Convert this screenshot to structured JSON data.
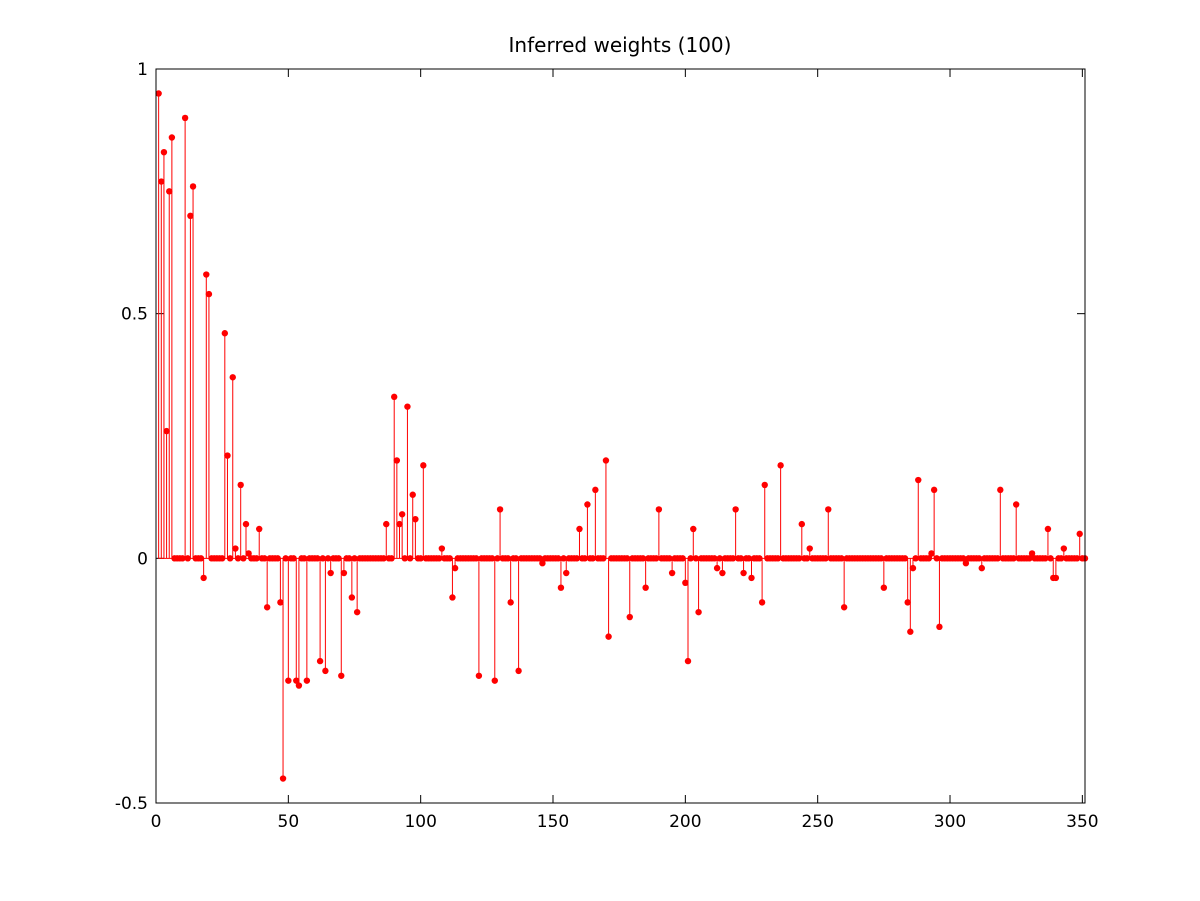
{
  "chart_data": {
    "type": "stem",
    "title": "Inferred weights (100)",
    "xlabel": "",
    "ylabel": "",
    "xlim": [
      0,
      351
    ],
    "ylim": [
      -0.5,
      1
    ],
    "xticks": [
      0,
      50,
      100,
      150,
      200,
      250,
      300,
      350
    ],
    "yticks": [
      -0.5,
      0,
      0.5,
      1
    ],
    "xtick_labels": [
      "0",
      "50",
      "100",
      "150",
      "200",
      "250",
      "300",
      "350"
    ],
    "ytick_labels": [
      "-0.5",
      "0",
      "0.5",
      "1"
    ],
    "grid": false,
    "series": [
      {
        "color": "#ff0000",
        "n": 351,
        "nonzero": [
          [
            1,
            0.95
          ],
          [
            2,
            0.77
          ],
          [
            3,
            0.83
          ],
          [
            4,
            0.26
          ],
          [
            5,
            0.75
          ],
          [
            6,
            0.86
          ],
          [
            11,
            0.9
          ],
          [
            13,
            0.7
          ],
          [
            14,
            0.76
          ],
          [
            18,
            -0.04
          ],
          [
            19,
            0.58
          ],
          [
            20,
            0.54
          ],
          [
            26,
            0.46
          ],
          [
            27,
            0.21
          ],
          [
            29,
            0.37
          ],
          [
            30,
            0.02
          ],
          [
            32,
            0.15
          ],
          [
            34,
            0.07
          ],
          [
            35,
            0.01
          ],
          [
            39,
            0.06
          ],
          [
            42,
            -0.1
          ],
          [
            47,
            -0.09
          ],
          [
            48,
            -0.45
          ],
          [
            50,
            -0.25
          ],
          [
            53,
            -0.25
          ],
          [
            54,
            -0.26
          ],
          [
            57,
            -0.25
          ],
          [
            62,
            -0.21
          ],
          [
            64,
            -0.23
          ],
          [
            66,
            -0.03
          ],
          [
            70,
            -0.24
          ],
          [
            71,
            -0.03
          ],
          [
            74,
            -0.08
          ],
          [
            76,
            -0.11
          ],
          [
            87,
            0.07
          ],
          [
            90,
            0.33
          ],
          [
            91,
            0.2
          ],
          [
            92,
            0.07
          ],
          [
            93,
            0.09
          ],
          [
            95,
            0.31
          ],
          [
            97,
            0.13
          ],
          [
            98,
            0.08
          ],
          [
            101,
            0.19
          ],
          [
            108,
            0.02
          ],
          [
            112,
            -0.08
          ],
          [
            113,
            -0.02
          ],
          [
            122,
            -0.24
          ],
          [
            128,
            -0.25
          ],
          [
            130,
            0.1
          ],
          [
            134,
            -0.09
          ],
          [
            137,
            -0.23
          ],
          [
            146,
            -0.01
          ],
          [
            153,
            -0.06
          ],
          [
            155,
            -0.03
          ],
          [
            160,
            0.06
          ],
          [
            163,
            0.11
          ],
          [
            166,
            0.14
          ],
          [
            170,
            0.2
          ],
          [
            171,
            -0.16
          ],
          [
            179,
            -0.12
          ],
          [
            185,
            -0.06
          ],
          [
            190,
            0.1
          ],
          [
            195,
            -0.03
          ],
          [
            200,
            -0.05
          ],
          [
            201,
            -0.21
          ],
          [
            203,
            0.06
          ],
          [
            205,
            -0.11
          ],
          [
            212,
            -0.02
          ],
          [
            214,
            -0.03
          ],
          [
            219,
            0.1
          ],
          [
            222,
            -0.03
          ],
          [
            225,
            -0.04
          ],
          [
            229,
            -0.09
          ],
          [
            230,
            0.15
          ],
          [
            236,
            0.19
          ],
          [
            244,
            0.07
          ],
          [
            247,
            0.02
          ],
          [
            254,
            0.1
          ],
          [
            260,
            -0.1
          ],
          [
            275,
            -0.06
          ],
          [
            284,
            -0.09
          ],
          [
            285,
            -0.15
          ],
          [
            286,
            -0.02
          ],
          [
            288,
            0.16
          ],
          [
            293,
            0.01
          ],
          [
            294,
            0.14
          ],
          [
            296,
            -0.14
          ],
          [
            306,
            -0.01
          ],
          [
            312,
            -0.02
          ],
          [
            319,
            0.14
          ],
          [
            325,
            0.11
          ],
          [
            331,
            0.01
          ],
          [
            337,
            0.06
          ],
          [
            339,
            -0.04
          ],
          [
            340,
            -0.04
          ],
          [
            343,
            0.02
          ],
          [
            349,
            0.05
          ]
        ]
      }
    ]
  }
}
